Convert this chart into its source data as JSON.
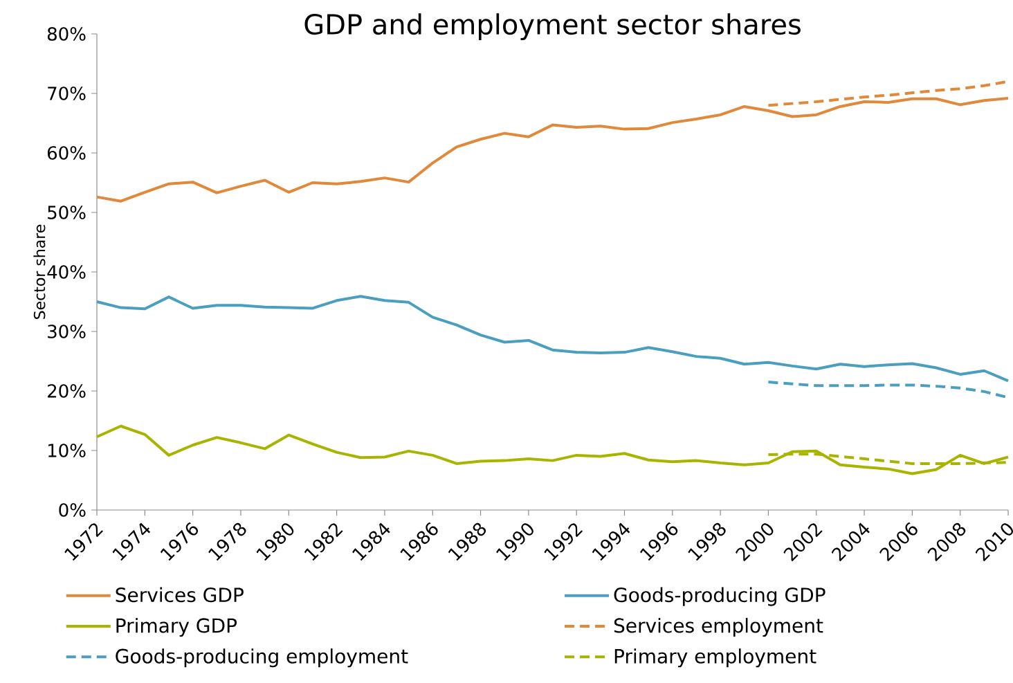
{
  "chart_data": {
    "type": "line",
    "title": "GDP and employment sector shares",
    "ylabel": "Sector share",
    "xlim": [
      1972,
      2010
    ],
    "xticks": [
      1972,
      1974,
      1976,
      1978,
      1980,
      1982,
      1984,
      1986,
      1988,
      1990,
      1992,
      1994,
      1996,
      1998,
      2000,
      2002,
      2004,
      2006,
      2008,
      2010
    ],
    "ylim": [
      0,
      80
    ],
    "yticks": [
      {
        "value": 0,
        "label": "0%"
      },
      {
        "value": 10,
        "label": "10%"
      },
      {
        "value": 20,
        "label": "20%"
      },
      {
        "value": 30,
        "label": "30%"
      },
      {
        "value": 40,
        "label": "40%"
      },
      {
        "value": 50,
        "label": "50%"
      },
      {
        "value": 60,
        "label": "60%"
      },
      {
        "value": 70,
        "label": "70%"
      },
      {
        "value": 80,
        "label": "80%"
      }
    ],
    "x": [
      1972,
      1973,
      1974,
      1975,
      1976,
      1977,
      1978,
      1979,
      1980,
      1981,
      1982,
      1983,
      1984,
      1985,
      1986,
      1987,
      1988,
      1989,
      1990,
      1991,
      1992,
      1993,
      1994,
      1995,
      1996,
      1997,
      1998,
      1999,
      2000,
      2001,
      2002,
      2003,
      2004,
      2005,
      2006,
      2007,
      2008,
      2009,
      2010
    ],
    "grid": false,
    "legend": "bottom",
    "marker": "none",
    "series": [
      {
        "name": "Services GDP",
        "color": "#e0893a",
        "line_style": "solid",
        "values": [
          52.6,
          51.9,
          53.4,
          54.8,
          55.1,
          53.3,
          54.4,
          55.4,
          53.4,
          55.0,
          54.8,
          55.2,
          55.8,
          55.1,
          58.3,
          61.0,
          62.3,
          63.3,
          62.7,
          64.7,
          64.3,
          64.5,
          64.0,
          64.1,
          65.1,
          65.7,
          66.4,
          67.8,
          67.1,
          66.1,
          66.4,
          67.8,
          68.6,
          68.5,
          69.1,
          69.1,
          68.1,
          68.8,
          69.2
        ]
      },
      {
        "name": "Goods-producing GDP",
        "color": "#4a9ebf",
        "line_style": "solid",
        "values": [
          35.0,
          34.0,
          33.8,
          35.8,
          33.9,
          34.4,
          34.4,
          34.1,
          34.0,
          33.9,
          35.2,
          35.9,
          35.2,
          34.9,
          32.4,
          31.1,
          29.4,
          28.2,
          28.5,
          26.9,
          26.5,
          26.4,
          26.5,
          27.3,
          26.6,
          25.8,
          25.5,
          24.5,
          24.8,
          24.2,
          23.7,
          24.5,
          24.1,
          24.4,
          24.6,
          23.9,
          22.8,
          23.4,
          21.7
        ]
      },
      {
        "name": "Primary GDP",
        "color": "#a8b400",
        "line_style": "solid",
        "values": [
          12.3,
          14.1,
          12.7,
          9.2,
          10.9,
          12.2,
          11.3,
          10.3,
          12.6,
          11.1,
          9.7,
          8.8,
          8.9,
          9.9,
          9.2,
          7.8,
          8.2,
          8.3,
          8.6,
          8.3,
          9.2,
          9.0,
          9.5,
          8.4,
          8.1,
          8.3,
          7.9,
          7.6,
          7.9,
          9.8,
          9.9,
          7.6,
          7.2,
          6.9,
          6.1,
          6.8,
          9.2,
          7.8,
          8.9
        ]
      },
      {
        "name": "Services employment",
        "color": "#e0893a",
        "line_style": "dashed",
        "x": [
          2000,
          2001,
          2002,
          2003,
          2004,
          2005,
          2006,
          2007,
          2008,
          2009,
          2010
        ],
        "values": [
          68.0,
          68.3,
          68.6,
          69.0,
          69.4,
          69.7,
          70.1,
          70.5,
          70.8,
          71.3,
          72.0
        ]
      },
      {
        "name": "Goods-producing employment",
        "color": "#4a9ebf",
        "line_style": "dashed",
        "x": [
          2000,
          2001,
          2002,
          2003,
          2004,
          2005,
          2006,
          2007,
          2008,
          2009,
          2010
        ],
        "values": [
          21.5,
          21.2,
          20.9,
          20.9,
          20.9,
          21.0,
          21.0,
          20.8,
          20.5,
          19.9,
          18.9
        ]
      },
      {
        "name": "Primary employment",
        "color": "#a8b400",
        "line_style": "dashed",
        "x": [
          2000,
          2001,
          2002,
          2003,
          2004,
          2005,
          2006,
          2007,
          2008,
          2009,
          2010
        ],
        "values": [
          9.3,
          9.4,
          9.4,
          9.0,
          8.6,
          8.2,
          7.8,
          7.8,
          7.8,
          7.9,
          8.0
        ]
      }
    ]
  }
}
